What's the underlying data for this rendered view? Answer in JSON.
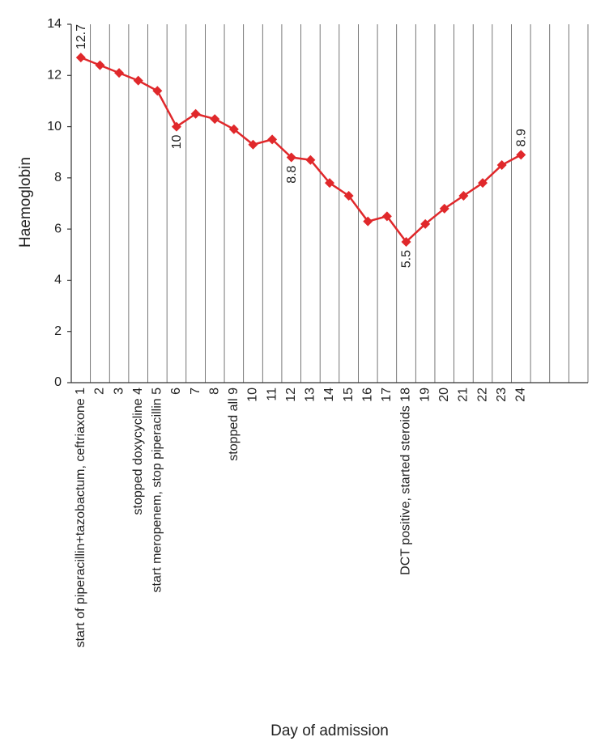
{
  "chart_data": {
    "type": "line",
    "y_label": "Haemoglobin",
    "x_label": "Day of admission",
    "categories": [
      "start of piperacillin+tazobactum, ceftriaxone 1",
      "2",
      "3",
      "stopped doxycycline 4",
      "start meropenem, stop piperacillin 5",
      "6",
      "7",
      "8",
      "stopped all 9",
      "10",
      "11",
      "12",
      "13",
      "14",
      "15",
      "16",
      "17",
      "DCT positive, started steroids 18",
      "19",
      "20",
      "21",
      "22",
      "23",
      "24",
      null,
      null,
      null
    ],
    "series": [
      {
        "name": "Haemoglobin",
        "color": "#e0282b",
        "values": [
          12.7,
          12.4,
          12.1,
          11.8,
          11.4,
          10,
          10.5,
          10.3,
          9.9,
          9.3,
          9.5,
          8.8,
          8.7,
          7.8,
          7.3,
          6.3,
          6.5,
          5.5,
          6.2,
          6.8,
          7.3,
          7.8,
          8.5,
          8.9,
          null,
          null,
          null
        ]
      }
    ],
    "value_labels": [
      "12.7",
      null,
      null,
      null,
      null,
      "10",
      null,
      null,
      null,
      null,
      null,
      "8.8",
      null,
      null,
      null,
      null,
      null,
      "5.5",
      null,
      null,
      null,
      null,
      null,
      "8.9",
      null,
      null,
      null
    ],
    "ylim": [
      0,
      14
    ],
    "yticks": [
      0,
      2,
      4,
      6,
      8,
      10,
      12,
      14
    ]
  }
}
